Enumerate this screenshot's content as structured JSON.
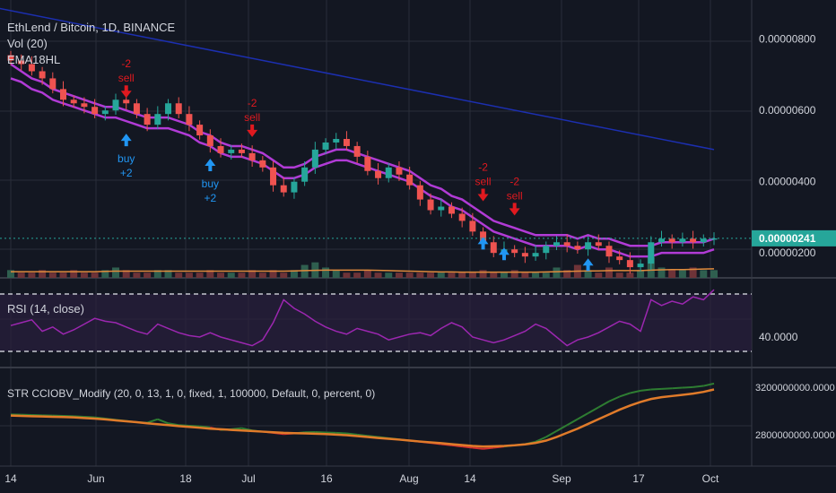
{
  "header": {
    "title": "EthLend / Bitcoin, 1D, BINANCE",
    "indicators": [
      "Vol (20)",
      "EMA18HL"
    ]
  },
  "panes": {
    "rsi_label": "RSI (14, close)",
    "obv_label": "STR CCIOBV_Modify (20, 0, 13, 1, 0, fixed, 1, 100000, Default, 0, percent, 0)"
  },
  "colors": {
    "background": "#131722",
    "grid": "#2a2e39",
    "candle_up": "#26a69a",
    "candle_down": "#ef5350",
    "ema": "#b13bd6",
    "trend": "#1c2fb0",
    "signal_buy": "#2196f3",
    "signal_sell": "#e0191f",
    "volume_ma": "#e08a3c",
    "rsi": "#9c27b0",
    "obv_main": "#2e7d32",
    "obv_signal": "#e07b2a",
    "price_tag": "#26a69a"
  },
  "chart_data": [
    {
      "type": "candlestick",
      "title": "EthLend / Bitcoin, 1D, BINANCE",
      "x_ticks": [
        "14",
        "Jun",
        "18",
        "Jul",
        "16",
        "Aug",
        "14",
        "Sep",
        "17",
        "Oct"
      ],
      "y_ticks": [
        "0.00000800",
        "0.00000600",
        "0.00000400",
        "0.00000200"
      ],
      "ylim": [
        1.3e-06,
        9.1e-06
      ],
      "current_price": "0.00000241",
      "close_series": [
        7.4,
        7.3,
        7.1,
        6.9,
        6.6,
        6.3,
        6.2,
        6.1,
        5.9,
        6.0,
        6.3,
        6.2,
        5.9,
        5.6,
        5.9,
        6.2,
        5.9,
        5.6,
        5.3,
        5.0,
        4.8,
        4.9,
        4.8,
        4.6,
        4.4,
        3.9,
        3.7,
        4.0,
        4.4,
        4.9,
        5.1,
        5.2,
        5.0,
        4.7,
        4.3,
        4.1,
        4.4,
        4.2,
        3.9,
        3.5,
        3.2,
        3.3,
        3.1,
        2.9,
        2.6,
        2.3,
        2.0,
        2.1,
        2.0,
        1.9,
        2.0,
        2.2,
        2.3,
        2.2,
        2.1,
        2.3,
        2.2,
        1.9,
        1.8,
        1.6,
        1.7,
        2.3,
        2.4,
        2.3,
        2.4,
        2.3,
        2.4,
        2.41
      ],
      "ema_upper": [
        7.3,
        7.1,
        6.9,
        6.8,
        6.6,
        6.5,
        6.4,
        6.3,
        6.2,
        6.1,
        6.1,
        6.0,
        5.9,
        5.8,
        5.8,
        5.8,
        5.7,
        5.6,
        5.4,
        5.3,
        5.1,
        5.0,
        5.0,
        4.9,
        4.8,
        4.6,
        4.4,
        4.4,
        4.5,
        4.7,
        4.8,
        4.9,
        4.9,
        4.8,
        4.7,
        4.6,
        4.5,
        4.4,
        4.3,
        4.1,
        3.9,
        3.8,
        3.6,
        3.5,
        3.3,
        3.1,
        2.9,
        2.8,
        2.7,
        2.6,
        2.5,
        2.5,
        2.5,
        2.5,
        2.4,
        2.5,
        2.4,
        2.4,
        2.3,
        2.2,
        2.2,
        2.2,
        2.3,
        2.3,
        2.3,
        2.3,
        2.3,
        2.4
      ],
      "ema_lower": [
        6.9,
        6.8,
        6.6,
        6.5,
        6.3,
        6.2,
        6.1,
        6.0,
        5.9,
        5.8,
        5.8,
        5.7,
        5.6,
        5.5,
        5.5,
        5.5,
        5.4,
        5.3,
        5.1,
        5.0,
        4.8,
        4.7,
        4.7,
        4.6,
        4.5,
        4.3,
        4.1,
        4.1,
        4.2,
        4.4,
        4.5,
        4.6,
        4.6,
        4.5,
        4.4,
        4.3,
        4.2,
        4.1,
        4.0,
        3.8,
        3.6,
        3.5,
        3.3,
        3.2,
        3.0,
        2.8,
        2.6,
        2.5,
        2.4,
        2.3,
        2.2,
        2.2,
        2.2,
        2.2,
        2.1,
        2.2,
        2.1,
        2.1,
        2.0,
        1.9,
        1.9,
        1.9,
        2.0,
        2.0,
        2.0,
        2.0,
        2.0,
        2.1
      ],
      "trendline": [
        [
          0,
          8.9
        ],
        [
          67,
          4.9
        ]
      ],
      "signals": [
        {
          "kind": "sell",
          "index": 11,
          "labels": [
            "-2",
            "sell"
          ]
        },
        {
          "kind": "buy",
          "index": 11,
          "labels": [
            "buy",
            "+2"
          ]
        },
        {
          "kind": "buy",
          "index": 19,
          "labels": [
            "buy",
            "+2"
          ]
        },
        {
          "kind": "sell",
          "index": 23,
          "labels": [
            "-2",
            "sell"
          ]
        },
        {
          "kind": "sell",
          "index": 45,
          "labels": [
            "-2",
            "sell"
          ]
        },
        {
          "kind": "sell",
          "index": 48,
          "labels": [
            "-2",
            "sell"
          ]
        },
        {
          "kind": "buy",
          "index": 45,
          "labels": []
        },
        {
          "kind": "buy",
          "index": 47,
          "labels": []
        },
        {
          "kind": "buy",
          "index": 55,
          "labels": []
        }
      ]
    },
    {
      "type": "bar",
      "title": "Vol (20)",
      "values": [
        3,
        2,
        2,
        3,
        2,
        2,
        3,
        2,
        2,
        3,
        4,
        3,
        2,
        2,
        3,
        3,
        2,
        2,
        2,
        3,
        2,
        2,
        2,
        3,
        2,
        3,
        2,
        3,
        5,
        6,
        4,
        3,
        2,
        2,
        3,
        2,
        2,
        2,
        2,
        2,
        2,
        2,
        2,
        2,
        2,
        3,
        2,
        2,
        3,
        2,
        2,
        2,
        4,
        3,
        5,
        3,
        2,
        4,
        2,
        2,
        3,
        8,
        4,
        3,
        3,
        4,
        3,
        3
      ],
      "ma_values": [
        2.4,
        2.4,
        2.4,
        2.4,
        2.4,
        2.4,
        2.4,
        2.4,
        2.4,
        2.5,
        2.6,
        2.6,
        2.6,
        2.6,
        2.6,
        2.6,
        2.6,
        2.6,
        2.6,
        2.6,
        2.6,
        2.6,
        2.6,
        2.6,
        2.6,
        2.6,
        2.6,
        2.7,
        2.8,
        2.9,
        3.0,
        3.0,
        3.0,
        3.0,
        3.0,
        2.9,
        2.8,
        2.7,
        2.6,
        2.5,
        2.4,
        2.3,
        2.3,
        2.2,
        2.2,
        2.2,
        2.2,
        2.2,
        2.2,
        2.2,
        2.2,
        2.3,
        2.4,
        2.5,
        2.6,
        2.7,
        2.7,
        2.8,
        2.8,
        2.8,
        2.8,
        3.0,
        3.1,
        3.2,
        3.2,
        3.3,
        3.4,
        3.5
      ]
    },
    {
      "type": "line",
      "title": "RSI (14, close)",
      "y_ticks": [
        "40.0000"
      ],
      "ylim": [
        20,
        80
      ],
      "bands": [
        30,
        70
      ],
      "values": [
        48,
        50,
        52,
        44,
        47,
        42,
        45,
        49,
        53,
        51,
        50,
        47,
        44,
        42,
        49,
        46,
        43,
        41,
        40,
        43,
        40,
        38,
        36,
        34,
        38,
        50,
        66,
        60,
        56,
        51,
        47,
        44,
        42,
        46,
        44,
        42,
        38,
        40,
        42,
        43,
        41,
        46,
        50,
        47,
        40,
        38,
        36,
        38,
        41,
        44,
        49,
        46,
        40,
        34,
        38,
        40,
        43,
        47,
        51,
        49,
        44,
        66,
        62,
        65,
        63,
        68,
        66,
        73
      ]
    },
    {
      "type": "line",
      "title": "STR CCIOBV_Modify (20, 0, 13, 1, 0, fixed, 1, 100000, Default, 0, percent, 0)",
      "y_ticks": [
        "3200000000.0000",
        "2800000000.0000"
      ],
      "ylim": [
        2550000000,
        3350000000
      ],
      "series": [
        {
          "values": [
            2970,
            2968,
            2965,
            2962,
            2960,
            2958,
            2955,
            2950,
            2945,
            2935,
            2925,
            2915,
            2905,
            2900,
            2930,
            2895,
            2880,
            2875,
            2870,
            2860,
            2840,
            2845,
            2855,
            2835,
            2825,
            2815,
            2805,
            2810,
            2820,
            2822,
            2818,
            2815,
            2810,
            2800,
            2790,
            2780,
            2770,
            2760,
            2750,
            2740,
            2730,
            2720,
            2710,
            2700,
            2690,
            2680,
            2690,
            2700,
            2710,
            2720,
            2740,
            2780,
            2830,
            2880,
            2930,
            2980,
            3030,
            3080,
            3120,
            3150,
            3170,
            3180,
            3185,
            3190,
            3195,
            3200,
            3210,
            3230
          ]
        },
        {
          "values": [
            2960,
            2958,
            2955,
            2953,
            2950,
            2948,
            2945,
            2940,
            2935,
            2928,
            2920,
            2912,
            2905,
            2895,
            2888,
            2880,
            2872,
            2865,
            2858,
            2850,
            2845,
            2840,
            2835,
            2830,
            2825,
            2820,
            2815,
            2812,
            2810,
            2808,
            2805,
            2800,
            2795,
            2788,
            2780,
            2772,
            2765,
            2758,
            2750,
            2742,
            2735,
            2728,
            2720,
            2712,
            2705,
            2700,
            2702,
            2705,
            2710,
            2718,
            2730,
            2750,
            2780,
            2815,
            2850,
            2890,
            2930,
            2970,
            3010,
            3045,
            3075,
            3100,
            3115,
            3125,
            3135,
            3145,
            3160,
            3180
          ]
        }
      ]
    }
  ]
}
